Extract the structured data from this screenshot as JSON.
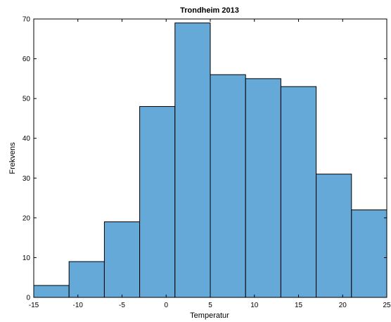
{
  "chart_data": {
    "type": "bar",
    "title": "Trondheim 2013",
    "xlabel": "Temperatur",
    "ylabel": "Frekvens",
    "bin_edges": [
      -15,
      -11,
      -7,
      -3,
      1,
      5,
      9,
      13,
      17,
      21,
      25
    ],
    "values": [
      3,
      9,
      19,
      48,
      69,
      56,
      55,
      53,
      31,
      22
    ],
    "xlim": [
      -15,
      25
    ],
    "ylim": [
      0,
      70
    ],
    "xticks": [
      -15,
      -10,
      -5,
      0,
      5,
      10,
      15,
      20,
      25
    ],
    "yticks": [
      0,
      10,
      20,
      30,
      40,
      50,
      60,
      70
    ],
    "bar_color": "#65a9d8",
    "edge_color": "#000000",
    "grid": false
  }
}
